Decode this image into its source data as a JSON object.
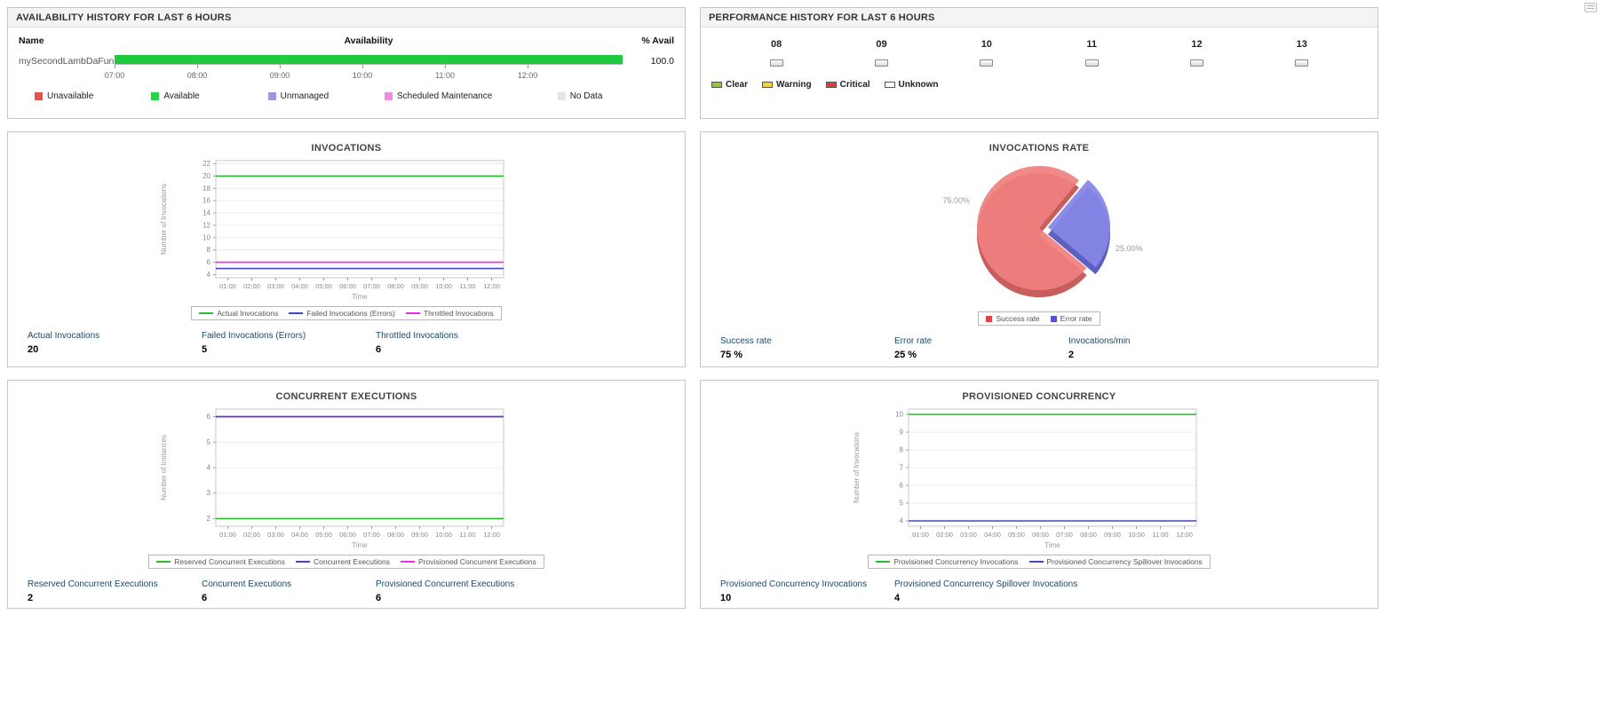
{
  "icons": {
    "page_options": "page-options-icon",
    "hour_status": "status-bar-icon"
  },
  "availability_panel": {
    "title": "AVAILABILITY HISTORY FOR LAST 6 HOURS",
    "columns": {
      "name": "Name",
      "availability": "Availability",
      "percent": "% Avail"
    },
    "row": {
      "name": "mySecondLambDaFunction",
      "percent": "100.0",
      "bar_color": "#1ecb3c"
    },
    "time_ticks": [
      "07:00",
      "08:00",
      "09:00",
      "10:00",
      "11:00",
      "12:00"
    ],
    "legend": [
      {
        "label": "Unavailable",
        "color": "#e8524e"
      },
      {
        "label": "Available",
        "color": "#2bd14a"
      },
      {
        "label": "Unmanaged",
        "color": "#9a99dd"
      },
      {
        "label": "Scheduled Maintenance",
        "color": "#f08ae4"
      },
      {
        "label": "No Data",
        "color": "#e4e4e4"
      }
    ]
  },
  "performance_panel": {
    "title": "PERFORMANCE HISTORY FOR LAST 6 HOURS",
    "hours": [
      "08",
      "09",
      "10",
      "11",
      "12",
      "13"
    ],
    "legend": [
      {
        "label": "Clear",
        "color": "#8cc63e"
      },
      {
        "label": "Warning",
        "color": "#f6d32b"
      },
      {
        "label": "Critical",
        "color": "#d7413e"
      },
      {
        "label": "Unknown",
        "color": "#ffffff"
      }
    ]
  },
  "chart_data": [
    {
      "type": "line",
      "title": "INVOCATIONS",
      "x": [
        "01:00",
        "02:00",
        "03:00",
        "04:00",
        "05:00",
        "06:00",
        "07:00",
        "08:00",
        "09:00",
        "10:00",
        "11:00",
        "12:00"
      ],
      "xlabel": "Time",
      "ylabel": "Number of Invocations",
      "ylim": [
        3.5,
        22.5
      ],
      "yticks": [
        4,
        6,
        8,
        10,
        12,
        14,
        16,
        18,
        20,
        22
      ],
      "grid": true,
      "legend_position": "bottom",
      "series": [
        {
          "name": "Actual Invocations",
          "color": "#2eb82e",
          "values": [
            20,
            20,
            20,
            20,
            20,
            20,
            20,
            20,
            20,
            20,
            20,
            20
          ]
        },
        {
          "name": "Failed Invocations (Errors)",
          "color": "#4444cc",
          "values": [
            5,
            5,
            5,
            5,
            5,
            5,
            5,
            5,
            5,
            5,
            5,
            5
          ]
        },
        {
          "name": "Throttled Invocations",
          "color": "#e82ee8",
          "values": [
            6,
            6,
            6,
            6,
            6,
            6,
            6,
            6,
            6,
            6,
            6,
            6
          ]
        }
      ]
    },
    {
      "type": "pie",
      "title": "INVOCATIONS RATE",
      "legend_position": "bottom",
      "slices": [
        {
          "name": "Success rate",
          "value": 75,
          "label": "75.00%",
          "color": "#f08080",
          "dark_color": "#c75e5e",
          "legend_color": "#e04545",
          "exploded": false
        },
        {
          "name": "Error rate",
          "value": 25,
          "label": "25.00%",
          "color": "#8585e6",
          "dark_color": "#5f5fc0",
          "legend_color": "#5050d8",
          "exploded": true
        }
      ]
    },
    {
      "type": "line",
      "title": "CONCURRENT EXECUTIONS",
      "x": [
        "01:00",
        "02:00",
        "03:00",
        "04:00",
        "05:00",
        "06:00",
        "07:00",
        "08:00",
        "09:00",
        "10:00",
        "11:00",
        "12:00"
      ],
      "xlabel": "Time",
      "ylabel": "Number of Instances",
      "ylim": [
        1.7,
        6.3
      ],
      "yticks": [
        2,
        3,
        4,
        5,
        6
      ],
      "grid": true,
      "legend_position": "bottom",
      "series": [
        {
          "name": "Reserved Concurrent Executions",
          "color": "#2eb82e",
          "values": [
            2,
            2,
            2,
            2,
            2,
            2,
            2,
            2,
            2,
            2,
            2,
            2
          ]
        },
        {
          "name": "Concurrent Executions",
          "color": "#4444cc",
          "values": [
            6,
            6,
            6,
            6,
            6,
            6,
            6,
            6,
            6,
            6,
            6,
            6
          ]
        },
        {
          "name": "Provisioned Concurrent Executions",
          "color": "#e82ee8",
          "values": [
            6,
            6,
            6,
            6,
            6,
            6,
            6,
            6,
            6,
            6,
            6,
            6
          ]
        }
      ]
    },
    {
      "type": "line",
      "title": "PROVISIONED CONCURRENCY",
      "x": [
        "01:00",
        "02:00",
        "03:00",
        "04:00",
        "05:00",
        "06:00",
        "07:00",
        "08:00",
        "09:00",
        "10:00",
        "11:00",
        "12:00"
      ],
      "xlabel": "Time",
      "ylabel": "Number of Invocations",
      "ylim": [
        3.7,
        10.3
      ],
      "yticks": [
        4,
        5,
        6,
        7,
        8,
        9,
        10
      ],
      "grid": true,
      "legend_position": "bottom",
      "series": [
        {
          "name": "Provisioned Concurrency Invocations",
          "color": "#2eb82e",
          "values": [
            10,
            10,
            10,
            10,
            10,
            10,
            10,
            10,
            10,
            10,
            10,
            10
          ]
        },
        {
          "name": "Provisioned Concurrency Spillover Invocations",
          "color": "#4444cc",
          "values": [
            4,
            4,
            4,
            4,
            4,
            4,
            4,
            4,
            4,
            4,
            4,
            4
          ]
        }
      ]
    }
  ],
  "stats": {
    "invocations": [
      {
        "label": "Actual Invocations",
        "value": "20"
      },
      {
        "label": "Failed Invocations (Errors)",
        "value": "5"
      },
      {
        "label": "Throttled Invocations",
        "value": "6"
      }
    ],
    "invocations_rate": [
      {
        "label": "Success rate",
        "value": "75 %"
      },
      {
        "label": "Error rate",
        "value": "25 %"
      },
      {
        "label": "Invocations/min",
        "value": "2"
      }
    ],
    "concurrent_executions": [
      {
        "label": "Reserved Concurrent Executions",
        "value": "2"
      },
      {
        "label": "Concurrent Executions",
        "value": "6"
      },
      {
        "label": "Provisioned Concurrent Executions",
        "value": "6"
      }
    ],
    "provisioned_concurrency": [
      {
        "label": "Provisioned Concurrency Invocations",
        "value": "10"
      },
      {
        "label": "Provisioned Concurrency Spillover Invocations",
        "value": "4"
      }
    ]
  }
}
